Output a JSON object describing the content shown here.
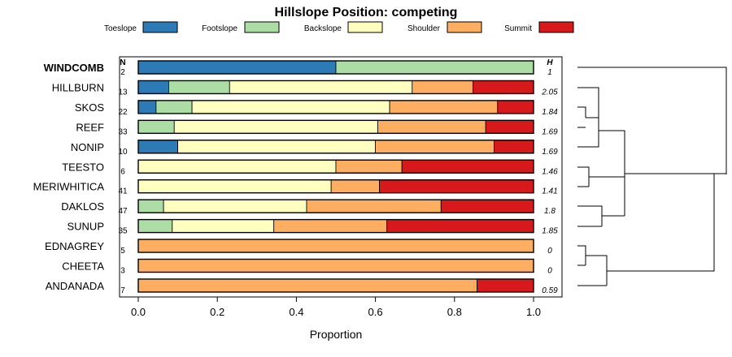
{
  "chart_data": {
    "type": "bar",
    "orientation": "horizontal",
    "stacked": true,
    "title": "Hillslope Position: competing",
    "xlabel": "Proportion",
    "xlim": [
      0,
      1
    ],
    "x_ticks": [
      "0.0",
      "0.2",
      "0.4",
      "0.6",
      "0.8",
      "1.0"
    ],
    "n_header": "N",
    "h_header": "H",
    "legend": [
      {
        "name": "Toeslope",
        "color": "#2c7bb6"
      },
      {
        "name": "Footslope",
        "color": "#abdda4"
      },
      {
        "name": "Backslope",
        "color": "#ffffbf"
      },
      {
        "name": "Shoulder",
        "color": "#fdae61"
      },
      {
        "name": "Summit",
        "color": "#d7191c"
      }
    ],
    "rows": [
      {
        "name": "WINDCOMB",
        "bold": true,
        "n": "2",
        "h": "1",
        "values": [
          0.5,
          0.5,
          0,
          0,
          0
        ]
      },
      {
        "name": "HILLBURN",
        "n": "13",
        "h": "2.05",
        "values": [
          0.077,
          0.154,
          0.462,
          0.154,
          0.153
        ]
      },
      {
        "name": "SKOS",
        "n": "22",
        "h": "1.84",
        "values": [
          0.045,
          0.091,
          0.5,
          0.273,
          0.091
        ]
      },
      {
        "name": "REEF",
        "n": "33",
        "h": "1.69",
        "values": [
          0,
          0.091,
          0.515,
          0.273,
          0.121
        ]
      },
      {
        "name": "NONIP",
        "n": "10",
        "h": "1.69",
        "values": [
          0.1,
          0,
          0.5,
          0.3,
          0.1
        ]
      },
      {
        "name": "TEESTO",
        "n": "6",
        "h": "1.46",
        "values": [
          0,
          0,
          0.5,
          0.167,
          0.333
        ]
      },
      {
        "name": "MERIWHITICA",
        "n": "41",
        "h": "1.41",
        "values": [
          0,
          0,
          0.488,
          0.122,
          0.39
        ]
      },
      {
        "name": "DAKLOS",
        "n": "47",
        "h": "1.8",
        "values": [
          0,
          0.064,
          0.362,
          0.34,
          0.234
        ]
      },
      {
        "name": "SUNUP",
        "n": "35",
        "h": "1.85",
        "values": [
          0,
          0.086,
          0.257,
          0.286,
          0.371
        ]
      },
      {
        "name": "EDNAGREY",
        "n": "5",
        "h": "0",
        "values": [
          0,
          0,
          0,
          1,
          0
        ]
      },
      {
        "name": "CHEETA",
        "n": "3",
        "h": "0",
        "values": [
          0,
          0,
          0,
          1,
          0
        ]
      },
      {
        "name": "ANDANADA",
        "n": "7",
        "h": "0.59",
        "values": [
          0,
          0,
          0,
          0.857,
          0.143
        ]
      }
    ]
  }
}
